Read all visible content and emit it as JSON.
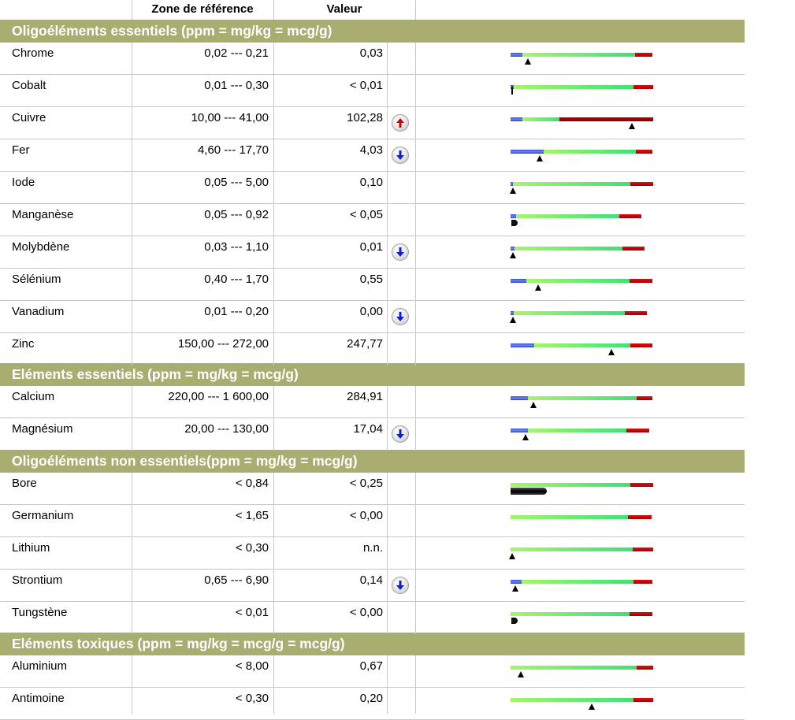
{
  "header": {
    "ref_label": "Zone de référence",
    "value_label": "Valeur"
  },
  "colors": {
    "section_bg": "#a7ae70",
    "low_zone": "#4a5fe0",
    "normal_zone": "#6ee872",
    "high_zone": "#d40000",
    "arrow_up": "#d00000",
    "arrow_down": "#1020d0"
  },
  "sections": [
    {
      "title": "Oligoéléments essentiels (ppm = mg/kg = mcg/g)",
      "rows": [
        {
          "name": "Chrome",
          "ref": "0,02 --- 0,21",
          "value": "0,03",
          "flag": ""
        },
        {
          "name": "Cobalt",
          "ref": "0,01 --- 0,30",
          "value": "< 0,01",
          "flag": ""
        },
        {
          "name": "Cuivre",
          "ref": "10,00 --- 41,00",
          "value": "102,28",
          "flag": "up"
        },
        {
          "name": "Fer",
          "ref": "4,60 --- 17,70",
          "value": "4,03",
          "flag": "down"
        },
        {
          "name": "Iode",
          "ref": "0,05 --- 5,00",
          "value": "0,10",
          "flag": ""
        },
        {
          "name": "Manganèse",
          "ref": "0,05 --- 0,92",
          "value": "< 0,05",
          "flag": ""
        },
        {
          "name": "Molybdène",
          "ref": "0,03 --- 1,10",
          "value": "0,01",
          "flag": "down"
        },
        {
          "name": "Sélénium",
          "ref": "0,40 --- 1,70",
          "value": "0,55",
          "flag": ""
        },
        {
          "name": "Vanadium",
          "ref": "0,01 --- 0,20",
          "value": "0,00",
          "flag": "down"
        },
        {
          "name": "Zinc",
          "ref": "150,00 --- 272,00",
          "value": "247,77",
          "flag": ""
        }
      ]
    },
    {
      "title": "Eléments essentiels (ppm = mg/kg = mcg/g)",
      "rows": [
        {
          "name": "Calcium",
          "ref": "220,00 --- 1 600,00",
          "value": "284,91",
          "flag": ""
        },
        {
          "name": "Magnésium",
          "ref": "20,00 --- 130,00",
          "value": "17,04",
          "flag": "down"
        }
      ]
    },
    {
      "title": "Oligoéléments non essentiels(ppm = mg/kg = mcg/g)",
      "rows": [
        {
          "name": "Bore",
          "ref": "< 0,84",
          "value": "< 0,25",
          "flag": ""
        },
        {
          "name": "Germanium",
          "ref": "< 1,65",
          "value": "< 0,00",
          "flag": ""
        },
        {
          "name": "Lithium",
          "ref": "< 0,30",
          "value": "n.n.",
          "flag": ""
        },
        {
          "name": "Strontium",
          "ref": "0,65 --- 6,90",
          "value": "0,14",
          "flag": "down"
        },
        {
          "name": "Tungstène",
          "ref": "< 0,01",
          "value": "< 0,00",
          "flag": ""
        }
      ]
    },
    {
      "title": "Eléments toxiques (ppm = mg/kg = mcg/g = mcg/g)",
      "rows": [
        {
          "name": "Aluminium",
          "ref": "< 8,00",
          "value": "0,67",
          "flag": ""
        },
        {
          "name": "Antimoine",
          "ref": "< 0,30",
          "value": "0,20",
          "flag": ""
        }
      ]
    }
  ]
}
